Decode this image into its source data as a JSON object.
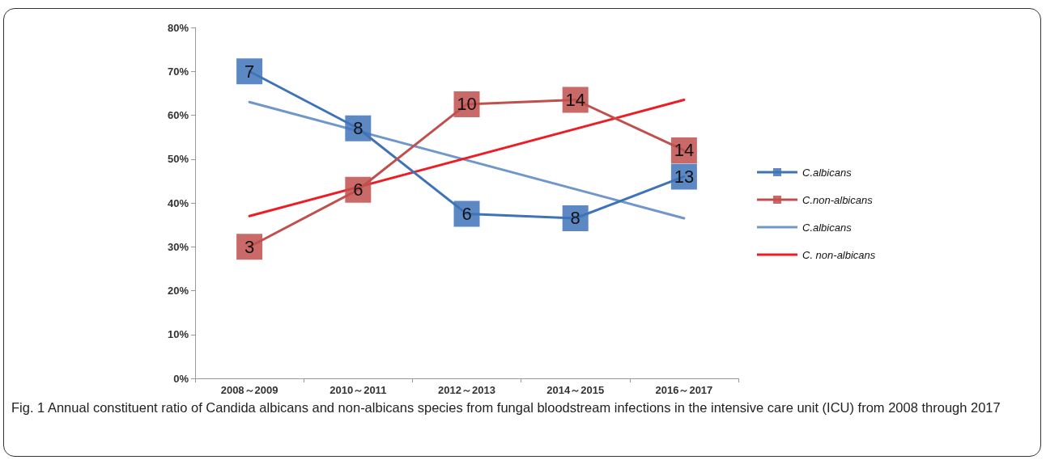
{
  "chart_data": {
    "type": "line",
    "categories": [
      "2008～2009",
      "2010～2011",
      "2012～2013",
      "2014～2015",
      "2016～2017"
    ],
    "series": [
      {
        "name": "C.albicans",
        "color": "#3f73b8",
        "values": [
          70,
          57,
          37.5,
          36.5,
          46
        ],
        "marker": "square"
      },
      {
        "name": "C.non-albicans",
        "color": "#c0504d",
        "values": [
          30,
          43,
          62.5,
          63.5,
          52
        ],
        "marker": "square"
      },
      {
        "name": "C.albicans",
        "color": "#6f97cc",
        "values": [
          63,
          null,
          null,
          null,
          36.5
        ],
        "marker": "none"
      },
      {
        "name": "C. non-albicans",
        "color": "#ee1c25",
        "values": [
          37,
          null,
          null,
          null,
          63.5
        ],
        "marker": "none"
      }
    ],
    "ylim": [
      0,
      80
    ],
    "yticks": [
      {
        "value": 0,
        "label": "0%"
      },
      {
        "value": 10,
        "label": "10%"
      },
      {
        "value": 20,
        "label": "20%"
      },
      {
        "value": 30,
        "label": "30%"
      },
      {
        "value": 40,
        "label": "40%"
      },
      {
        "value": 50,
        "label": "50%"
      },
      {
        "value": 60,
        "label": "60%"
      },
      {
        "value": 70,
        "label": "70%"
      },
      {
        "value": 80,
        "label": "80%"
      }
    ],
    "grid": false,
    "legend": "right",
    "line_style": "solid",
    "annotations": [
      {
        "text": "7",
        "x": "2008～2009",
        "y": 70
      },
      {
        "text": "8",
        "x": "2010～2011",
        "y": 57
      },
      {
        "text": "6",
        "x": "2012～2013",
        "y": 37.5
      },
      {
        "text": "8",
        "x": "2014～2015",
        "y": 36.5
      },
      {
        "text": "13",
        "x": "2016～2017",
        "y": 46
      },
      {
        "text": "3",
        "x": "2008～2009",
        "y": 30
      },
      {
        "text": "6",
        "x": "2010～2011",
        "y": 43
      },
      {
        "text": "10",
        "x": "2012～2013",
        "y": 62.5
      },
      {
        "text": "14",
        "x": "2014～2015",
        "y": 63.5
      },
      {
        "text": "14",
        "x": "2016～2017",
        "y": 52
      },
      "Fig. 1 Annual constituent ratio of Candida albicans and non-albicans species from fungal bloodstream infections in the intensive care unit (ICU) from 2008 through 2017"
    ]
  }
}
